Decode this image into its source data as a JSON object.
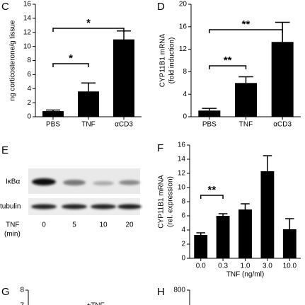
{
  "chart_data": [
    {
      "type": "bar",
      "panel": "C",
      "ylabel": [
        "ng corticosterone/g tissue"
      ],
      "categories": [
        "PBS",
        "TNF",
        "αCD3"
      ],
      "series": [
        {
          "color": "#000000",
          "values": [
            0.8,
            3.6,
            11.0
          ],
          "errors": [
            0.15,
            1.2,
            1.2
          ]
        }
      ],
      "ylim": [
        0,
        16
      ],
      "yticks": [
        0,
        2,
        4,
        6,
        8,
        10,
        12,
        14,
        16
      ],
      "annotations": [
        {
          "text": "*",
          "from": "PBS",
          "to": "TNF"
        },
        {
          "text": "*",
          "from": "PBS",
          "to": "αCD3"
        }
      ]
    },
    {
      "type": "bar",
      "panel": "D",
      "ylabel": [
        "CYP11B1 mRNA",
        "(fold induction)"
      ],
      "categories": [
        "PBS",
        "TNF",
        "αCD3"
      ],
      "series": [
        {
          "color": "#000000",
          "values": [
            1.1,
            6.0,
            13.3
          ],
          "errors": [
            0.4,
            1.1,
            3.5
          ]
        }
      ],
      "ylim": [
        0,
        20
      ],
      "yticks": [
        0,
        4,
        8,
        12,
        16,
        20
      ],
      "annotations": [
        {
          "text": "**",
          "from": "PBS",
          "to": "TNF"
        },
        {
          "text": "**",
          "from": "PBS",
          "to": "αCD3"
        }
      ]
    },
    {
      "type": "bar",
      "panel": "F",
      "ylabel": [
        "CYP11B1 mRNA",
        "(rel. expression)"
      ],
      "xlabel": "TNF (ng/ml)",
      "categories": [
        "0.0",
        "0.3",
        "1.0",
        "3.0",
        "10.0"
      ],
      "series": [
        {
          "color": "#000000",
          "values": [
            3.3,
            6.0,
            6.9,
            12.3,
            4.1
          ],
          "errors": [
            0.3,
            0.3,
            0.8,
            2.2,
            1.5
          ]
        }
      ],
      "ylim": [
        0,
        16
      ],
      "yticks": [
        0,
        2,
        4,
        6,
        8,
        10,
        12,
        14,
        16
      ],
      "annotations": [
        {
          "text": "**",
          "from": "0.0",
          "to": "0.3"
        }
      ]
    },
    {
      "type": "bar",
      "panel": "G",
      "ylim": [
        0,
        8
      ],
      "yticks": [
        7,
        8
      ],
      "label": "+TNF"
    },
    {
      "type": "bar",
      "panel": "H",
      "ylim": [
        0,
        800
      ],
      "yticks": [
        800
      ]
    }
  ],
  "blot": {
    "panel": "E",
    "rows": [
      "IκBα",
      "tubulin"
    ],
    "lanes_label": [
      "TNF",
      "(min)"
    ],
    "lanes": [
      0,
      5,
      10,
      20
    ]
  }
}
